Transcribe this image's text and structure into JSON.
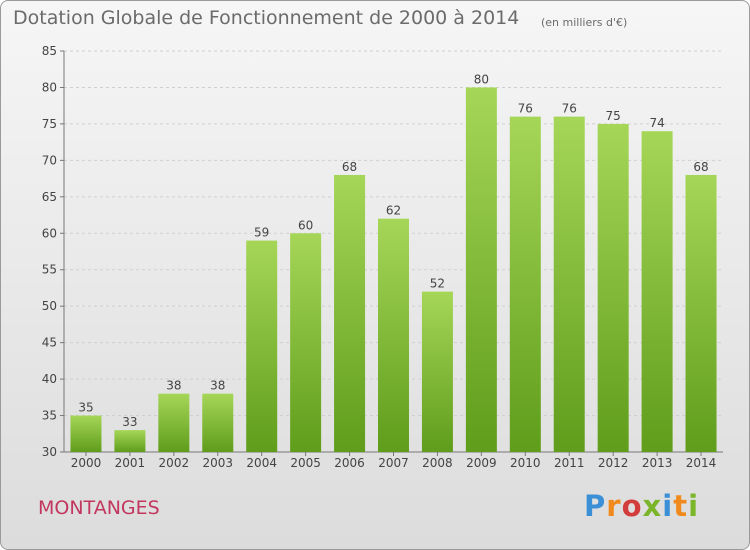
{
  "header": {
    "title": "Dotation Globale de Fonctionnement de 2000 à 2014",
    "unit_note": "(en milliers d'€)"
  },
  "footer": {
    "commune": "MONTANGES",
    "logo_text": "Proxiti"
  },
  "colors": {
    "bar_light": "#a6d657",
    "bar_dark": "#5f9d1b",
    "commune": "#c2375f"
  },
  "chart_data": {
    "type": "bar",
    "title": "Dotation Globale de Fonctionnement de 2000 à 2014",
    "subtitle": "(en milliers d'€)",
    "xlabel": "",
    "ylabel": "",
    "categories": [
      "2000",
      "2001",
      "2002",
      "2003",
      "2004",
      "2005",
      "2006",
      "2007",
      "2008",
      "2009",
      "2010",
      "2011",
      "2012",
      "2013",
      "2014"
    ],
    "values": [
      35,
      33,
      38,
      38,
      59,
      60,
      68,
      62,
      52,
      80,
      76,
      76,
      75,
      74,
      68
    ],
    "ylim": [
      30,
      85
    ],
    "yticks": [
      30,
      35,
      40,
      45,
      50,
      55,
      60,
      65,
      70,
      75,
      80,
      85
    ],
    "grid": true,
    "legend": "none",
    "data_labels": true
  }
}
